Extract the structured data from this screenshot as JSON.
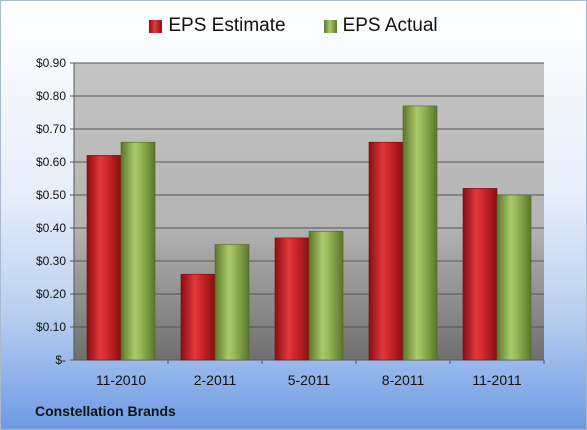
{
  "company": "Constellation Brands",
  "legend": {
    "estimate": "EPS Estimate",
    "actual": "EPS Actual"
  },
  "colors": {
    "estimate": "#c81e24",
    "actual": "#7f9f45"
  },
  "chart_data": {
    "type": "bar",
    "categories": [
      "11-2010",
      "2-2011",
      "5-2011",
      "8-2011",
      "11-2011"
    ],
    "series": [
      {
        "name": "EPS Estimate",
        "values": [
          0.62,
          0.26,
          0.37,
          0.66,
          0.52
        ]
      },
      {
        "name": "EPS Actual",
        "values": [
          0.66,
          0.35,
          0.39,
          0.77,
          0.5
        ]
      }
    ],
    "ylim": [
      0,
      0.9
    ],
    "yticks": [
      0,
      0.1,
      0.2,
      0.3,
      0.4,
      0.5,
      0.6,
      0.7,
      0.8,
      0.9
    ],
    "ytick_labels": [
      "$-",
      "$0.10",
      "$0.20",
      "$0.30",
      "$0.40",
      "$0.50",
      "$0.60",
      "$0.70",
      "$0.80",
      "$0.90"
    ],
    "grid": true,
    "legend_position": "top"
  }
}
